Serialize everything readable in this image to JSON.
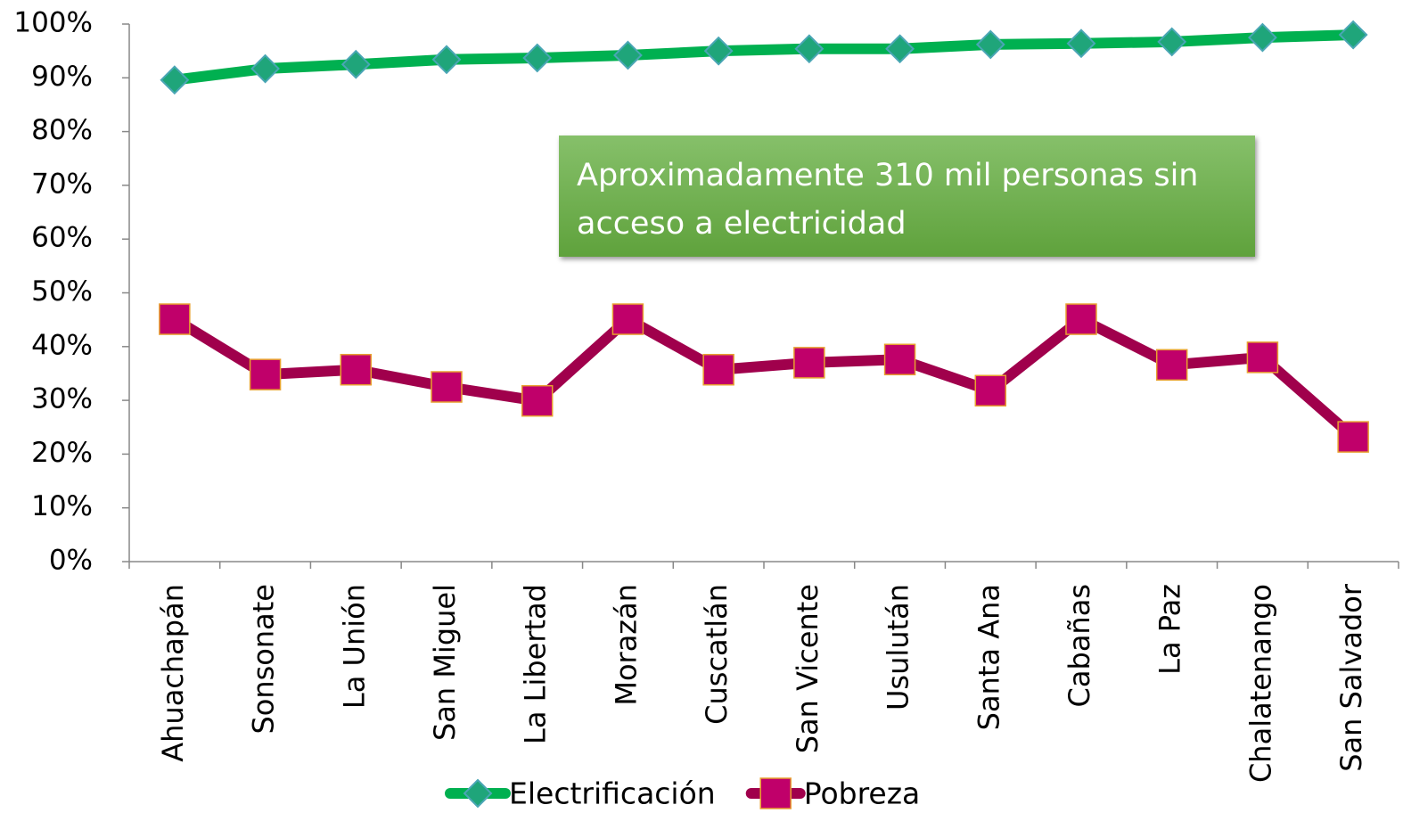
{
  "chart_data": {
    "type": "line",
    "categories": [
      "Ahuachapán",
      "Sonsonate",
      "La Unión",
      "San Miguel",
      "La Libertad",
      "Morazán",
      "Cuscatlán",
      "San Vicente",
      "Usulután",
      "Santa Ana",
      "Cabañas",
      "La Paz",
      "Chalatenango",
      "San Salvador"
    ],
    "series": [
      {
        "name": "Electrificación",
        "color": "#00b050",
        "marker": "diamond",
        "values": [
          89.6,
          91.7,
          92.5,
          93.4,
          93.7,
          94.2,
          95.0,
          95.4,
          95.4,
          96.2,
          96.4,
          96.7,
          97.5,
          98.0
        ]
      },
      {
        "name": "Pobreza",
        "color": "#a0004c",
        "marker": "square",
        "values": [
          45.1,
          34.8,
          35.7,
          32.5,
          29.9,
          45.1,
          35.7,
          37.0,
          37.6,
          31.8,
          45.1,
          36.6,
          38.0,
          23.2
        ]
      }
    ],
    "ylim": [
      0,
      100
    ],
    "yticks": [
      {
        "value": 0,
        "label": "0%"
      },
      {
        "value": 10,
        "label": "10%"
      },
      {
        "value": 20,
        "label": "20%"
      },
      {
        "value": 30,
        "label": "30%"
      },
      {
        "value": 40,
        "label": "40%"
      },
      {
        "value": 50,
        "label": "50%"
      },
      {
        "value": 60,
        "label": "60%"
      },
      {
        "value": 70,
        "label": "70%"
      },
      {
        "value": 80,
        "label": "80%"
      },
      {
        "value": 90,
        "label": "90%"
      },
      {
        "value": 100,
        "label": "100%"
      }
    ],
    "annotation": "Aproximadamente 310 mil personas sin acceso a electricidad",
    "legend": "bottom"
  }
}
